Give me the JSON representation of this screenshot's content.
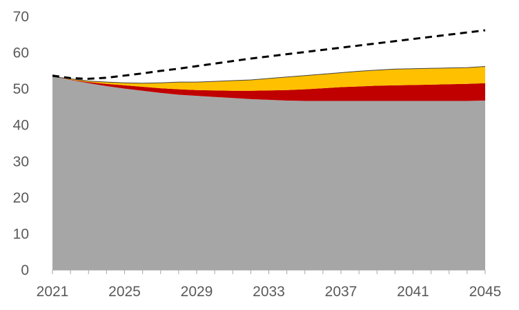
{
  "chart_data": {
    "type": "area",
    "x": [
      2021,
      2022,
      2023,
      2024,
      2025,
      2026,
      2027,
      2028,
      2029,
      2030,
      2031,
      2032,
      2033,
      2034,
      2035,
      2036,
      2037,
      2038,
      2039,
      2040,
      2041,
      2042,
      2043,
      2044,
      2045
    ],
    "series": [
      {
        "key": "base",
        "color": "#a6a6a6",
        "values": [
          53.4,
          52.5,
          51.6,
          50.8,
          50.1,
          49.5,
          48.9,
          48.4,
          48.1,
          47.8,
          47.5,
          47.2,
          47.0,
          46.8,
          46.7,
          46.7,
          46.7,
          46.7,
          46.7,
          46.7,
          46.7,
          46.7,
          46.7,
          46.7,
          46.8
        ]
      },
      {
        "key": "red_layer",
        "color": "#c00000",
        "values": [
          0.0,
          0.1,
          0.3,
          0.6,
          0.9,
          1.1,
          1.3,
          1.5,
          1.6,
          1.8,
          2.0,
          2.3,
          2.6,
          2.9,
          3.2,
          3.5,
          3.8,
          4.0,
          4.2,
          4.3,
          4.4,
          4.5,
          4.6,
          4.7,
          4.8
        ]
      },
      {
        "key": "yellow_layer",
        "color": "#ffc000",
        "values": [
          0.0,
          0.2,
          0.3,
          0.5,
          0.7,
          1.0,
          1.5,
          2.0,
          2.2,
          2.5,
          2.8,
          3.0,
          3.3,
          3.6,
          3.8,
          3.9,
          4.0,
          4.2,
          4.3,
          4.5,
          4.5,
          4.5,
          4.5,
          4.5,
          4.6
        ]
      },
      {
        "key": "dashed_line",
        "style": "dashed",
        "color": "#000000",
        "values": [
          53.7,
          53.0,
          52.8,
          53.1,
          53.7,
          54.3,
          55.0,
          55.6,
          56.3,
          57.0,
          57.7,
          58.4,
          59.0,
          59.6,
          60.2,
          60.8,
          61.4,
          62.0,
          62.6,
          63.2,
          63.8,
          64.4,
          65.0,
          65.6,
          66.2
        ]
      }
    ],
    "x_ticks": [
      "2021",
      "2025",
      "2029",
      "2033",
      "2037",
      "2041",
      "2045"
    ],
    "y_ticks": [
      "0",
      "10",
      "20",
      "30",
      "40",
      "50",
      "60",
      "70"
    ],
    "ylim": [
      0,
      70
    ],
    "xlim": [
      2021,
      2045
    ],
    "title": "",
    "xlabel": "",
    "ylabel": "",
    "grid": false,
    "legend": "none"
  }
}
